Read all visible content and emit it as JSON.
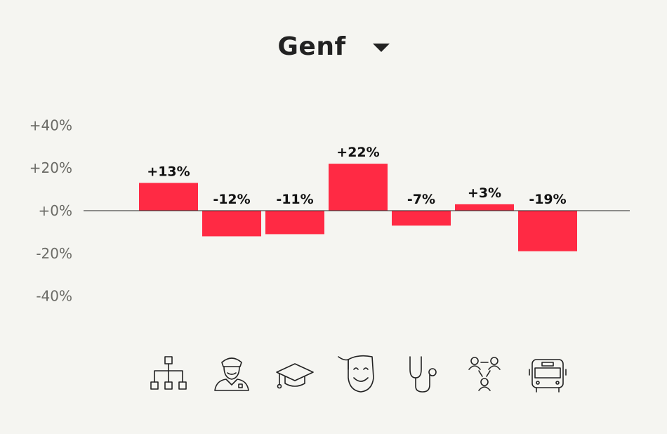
{
  "selector": {
    "value": "Genf"
  },
  "colors": {
    "bar": "#ff2a44",
    "background": "#f5f5f1",
    "axis": "#222222"
  },
  "chart_data": {
    "type": "bar",
    "categories": [
      "IT",
      "Police",
      "Education",
      "Culture",
      "Health",
      "Social",
      "Transport"
    ],
    "icons": [
      "org-chart-icon",
      "police-officer-icon",
      "graduation-cap-icon",
      "theater-mask-icon",
      "stethoscope-icon",
      "people-network-icon",
      "bus-icon"
    ],
    "values": [
      13,
      -12,
      -11,
      22,
      -7,
      3,
      -19
    ],
    "data_labels": [
      "+13%",
      "-12%",
      "-11%",
      "+22%",
      "-7%",
      "+3%",
      "-19%"
    ],
    "y_ticks": [
      40,
      20,
      0,
      -20,
      -40
    ],
    "y_tick_labels": [
      "+40%",
      "+20%",
      "+0%",
      "-20%",
      "-40%"
    ],
    "ylim": [
      -40,
      40
    ],
    "grid": false
  }
}
